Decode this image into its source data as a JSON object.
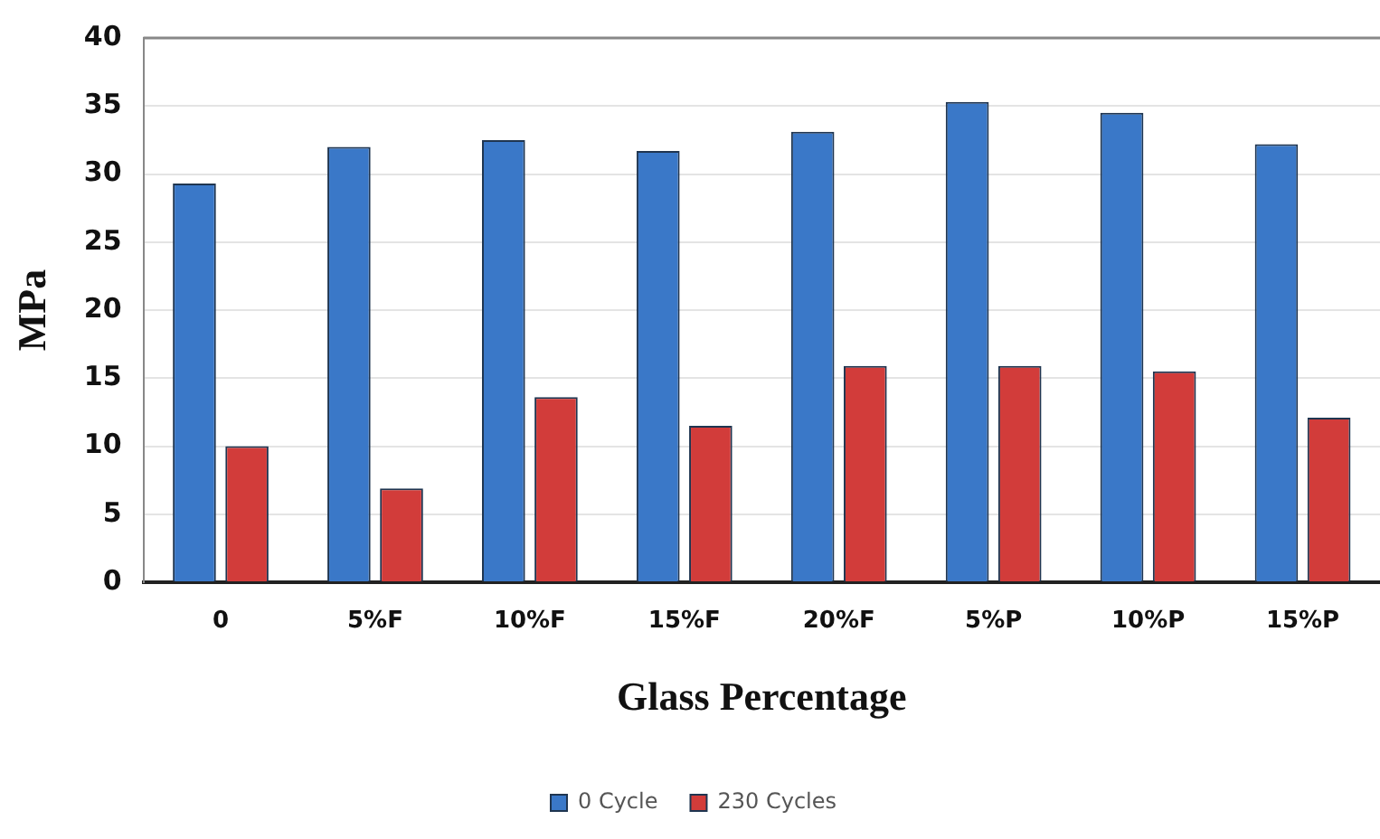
{
  "chart_data": {
    "type": "bar",
    "xlabel": "Glass Percentage",
    "ylabel": "MPa",
    "categories": [
      "0",
      "5%F",
      "10%F",
      "15%F",
      "20%F",
      "5%P",
      "10%P",
      "15%P"
    ],
    "series": [
      {
        "name": "0 Cycle",
        "color": "#3a78c8",
        "values": [
          29.3,
          32,
          32.5,
          31.7,
          33.1,
          35.3,
          34.5,
          32.2
        ]
      },
      {
        "name": "230 Cycles",
        "color": "#d23c3a",
        "values": [
          10,
          6.9,
          13.6,
          11.5,
          15.9,
          15.9,
          15.5,
          12.1
        ]
      }
    ],
    "ylim": [
      0,
      40
    ],
    "yticks": [
      0,
      5,
      10,
      15,
      20,
      25,
      30,
      35,
      40
    ],
    "grid": "y",
    "legend": "bottom"
  }
}
